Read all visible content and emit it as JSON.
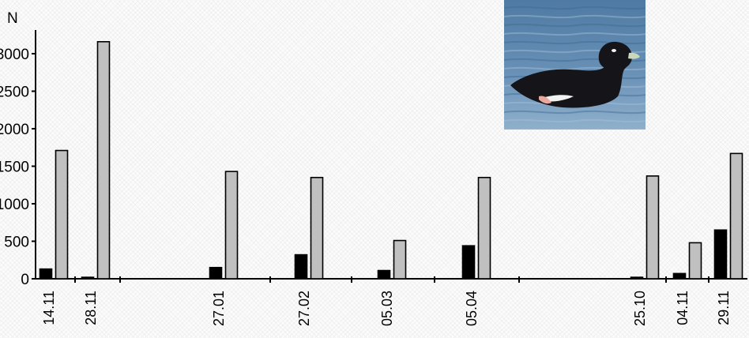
{
  "chart_data": {
    "type": "bar",
    "title": "",
    "xlabel": "",
    "ylabel": "N",
    "ylim": [
      0,
      3000
    ],
    "yticks": [
      {
        "value": 0,
        "label": "0"
      },
      {
        "value": 500,
        "label": "500"
      },
      {
        "value": 1000,
        "label": "1000"
      },
      {
        "value": 1500,
        "label": "1500"
      },
      {
        "value": 2000,
        "label": "2000"
      },
      {
        "value": 2500,
        "label": "2500"
      },
      {
        "value": 3000,
        "label": "3000"
      }
    ],
    "categories": [
      "14.11",
      "28.11",
      "27.01",
      "27.02",
      "05.03",
      "05.04",
      "25.10",
      "04.11",
      "29.11"
    ],
    "series": [
      {
        "color": "#000000",
        "values": [
          130,
          20,
          150,
          320,
          110,
          440,
          20,
          70,
          650
        ]
      },
      {
        "color": "#c0c0c0",
        "values": [
          1710,
          3160,
          1430,
          1350,
          510,
          1350,
          1370,
          480,
          1670
        ]
      }
    ],
    "legend": "none",
    "grid": false
  },
  "photo": {
    "subject": "duck-swimming",
    "colors": {
      "water": "#5f87ad",
      "water_light": "#a9c2d6",
      "bird_body": "#141419",
      "bird_wing_patch": "#f2f2f2",
      "bill": "#c9d8ba"
    }
  }
}
